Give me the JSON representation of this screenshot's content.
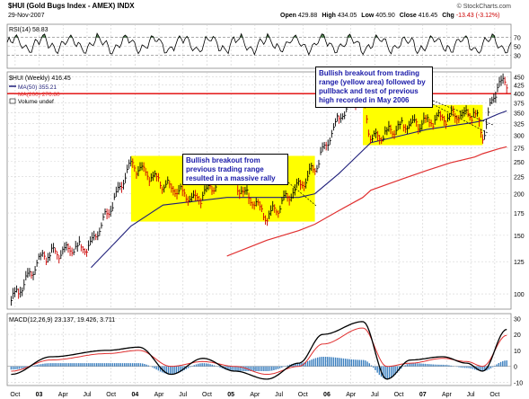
{
  "header": {
    "symbol_title": "$HUI (Gold Bugs Index - AMEX) INDX",
    "date": "29-Nov-2007",
    "open_label": "Open",
    "open": "429.88",
    "high_label": "High",
    "high": "434.05",
    "low_label": "Low",
    "low": "405.90",
    "close_label": "Close",
    "close": "416.45",
    "chg_label": "Chg",
    "chg": "-13.43 (-3.12%)",
    "chg_color": "#cc0000",
    "brand": "© StockCharts.com"
  },
  "colors": {
    "price": "#000000",
    "down_bar": "#cc0000",
    "ma50": "#1f1f7a",
    "ma200": "#e03030",
    "highlight": "#ffff00",
    "resistance": "#e00000",
    "macd": "#000000",
    "signal": "#e03030",
    "histogram": "#3a7fbf",
    "rsi": "#000000",
    "rsi_fill": "#2e6b2e"
  },
  "chart_data": [
    {
      "panel": "rsi",
      "type": "line",
      "label": "RSI(14) 58.83",
      "ylim": [
        0,
        100
      ],
      "yticks": [
        30,
        50,
        70
      ],
      "reference_lines": [
        30,
        70
      ],
      "last": 58.83
    },
    {
      "panel": "price",
      "type": "line",
      "legend": [
        "$HUI (Weekly) 416.45",
        "MA(50) 355.21",
        "MA(200) 276.80",
        "Volume undef"
      ],
      "x": [
        "2002-09",
        "2003-01",
        "2003-07",
        "2003-12",
        "2004-04",
        "2004-08",
        "2004-12",
        "2005-05",
        "2005-09",
        "2005-11",
        "2006-02",
        "2006-05",
        "2006-06",
        "2006-10",
        "2007-01",
        "2007-04",
        "2007-07",
        "2007-08",
        "2007-10",
        "2007-11"
      ],
      "series": [
        {
          "name": "$HUI (Weekly)",
          "values": [
            95,
            130,
            140,
            245,
            215,
            190,
            230,
            170,
            210,
            240,
            340,
            400,
            290,
            320,
            330,
            340,
            350,
            300,
            440,
            416
          ]
        },
        {
          "name": "MA(50)",
          "values": [
            null,
            null,
            120,
            160,
            185,
            190,
            195,
            195,
            195,
            200,
            230,
            270,
            285,
            300,
            312,
            320,
            328,
            332,
            348,
            355
          ]
        },
        {
          "name": "MA(200)",
          "values": [
            null,
            null,
            null,
            null,
            null,
            null,
            130,
            145,
            155,
            162,
            178,
            195,
            205,
            222,
            235,
            248,
            258,
            264,
            273,
            277
          ]
        }
      ],
      "yticks": [
        100,
        125,
        150,
        175,
        200,
        225,
        250,
        275,
        300,
        325,
        350,
        375,
        400,
        425,
        450
      ],
      "ylim": [
        90,
        465
      ],
      "log_scale": true,
      "resistance_line": 400,
      "highlight_ranges": [
        {
          "x_start": "2003-12",
          "x_end": "2005-11",
          "y_low": 165,
          "y_high": 260
        },
        {
          "x_start": "2006-05",
          "x_end": "2007-08",
          "y_low": 280,
          "y_high": 370
        }
      ],
      "annotations": [
        "Bullish breakout from previous trading range resulted in a massive rally",
        "Bullish breakout from trading range (yellow area) followed by pullback and test of previous high recorded in May 2006"
      ]
    },
    {
      "panel": "macd",
      "type": "line",
      "label": "MACD(12,26,9) 23.137, 19.426, 3.711",
      "x": [
        "2002-09",
        "2003-02",
        "2003-09",
        "2004-01",
        "2004-05",
        "2004-09",
        "2005-01",
        "2005-05",
        "2005-09",
        "2005-12",
        "2006-05",
        "2006-08",
        "2006-11",
        "2007-03",
        "2007-06",
        "2007-08",
        "2007-11"
      ],
      "series": [
        {
          "name": "MACD",
          "values": [
            -5,
            6,
            10,
            12,
            -5,
            5,
            -3,
            -8,
            2,
            20,
            28,
            -8,
            4,
            6,
            2,
            -3,
            23.137
          ]
        },
        {
          "name": "Signal",
          "values": [
            -3,
            4,
            8,
            10,
            0,
            3,
            0,
            -5,
            0,
            14,
            24,
            0,
            2,
            5,
            3,
            0,
            19.426
          ]
        }
      ],
      "yticks": [
        -10,
        0,
        10,
        20,
        30
      ],
      "ylim": [
        -12,
        33
      ]
    }
  ],
  "x_axis": {
    "labels": [
      "Oct",
      "03",
      "Apr",
      "Jul",
      "Oct",
      "04",
      "Apr",
      "Jul",
      "Oct",
      "05",
      "Apr",
      "Jul",
      "Oct",
      "06",
      "Apr",
      "Jul",
      "Oct",
      "07",
      "Apr",
      "Jul",
      "Oct"
    ]
  }
}
